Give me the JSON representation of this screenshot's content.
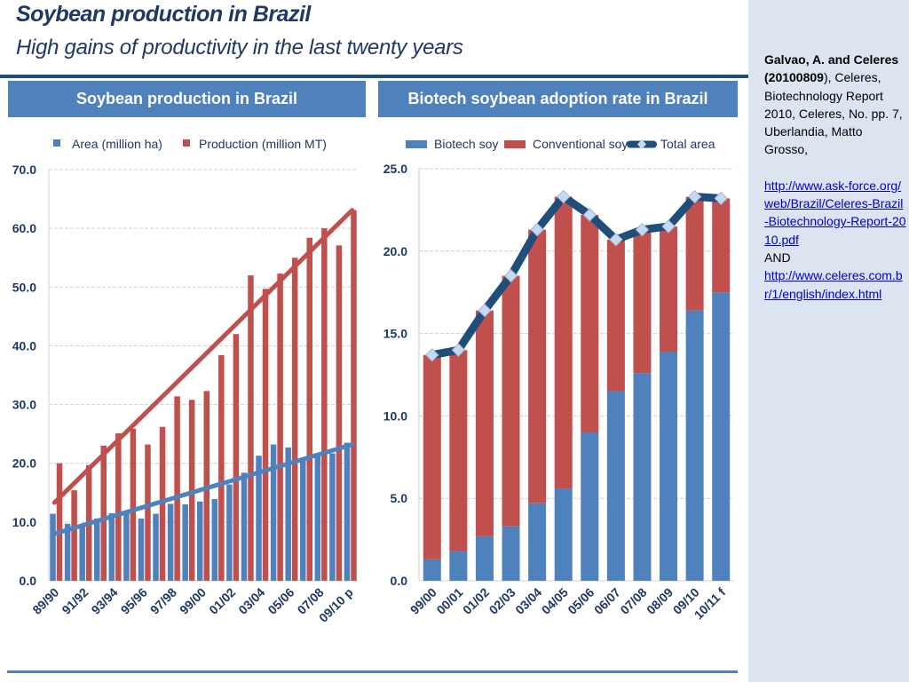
{
  "slide": {
    "title": "Soybean production in Brazil",
    "subtitle": "High gains of productivity in the last twenty years"
  },
  "colors": {
    "blue": "#4f81bd",
    "red": "#c0504d",
    "navy": "#1f4e79",
    "marker": "#c6d9f1",
    "text": "#1f3864"
  },
  "citation": {
    "author_bold": "Galvao, A. and Celeres (20100809",
    "author_tail": "),",
    "body": "Celeres, Biotechnology Report 2010, Celeres,  No. pp. 7,  Uberlandia, Matto Grosso,",
    "link1": "http://www.ask-force.org/web/Brazil/Celeres-Brazil-Biotechnology-Report-2010.pdf",
    "and": "AND",
    "link2": "http://www.celeres.com.br/1/english/index.html"
  },
  "chart_data": [
    {
      "type": "bar",
      "title": "Soybean production in Brazil",
      "xlabel": "",
      "ylabel": "",
      "ylim": [
        0,
        70
      ],
      "yticks": [
        "0.0",
        "10.0",
        "20.0",
        "30.0",
        "40.0",
        "50.0",
        "60.0",
        "70.0"
      ],
      "grid": true,
      "legend": "top",
      "categories": [
        "89/90",
        "90/91",
        "91/92",
        "92/93",
        "93/94",
        "94/95",
        "95/96",
        "96/97",
        "97/98",
        "98/99",
        "99/00",
        "00/01",
        "01/02",
        "02/03",
        "03/04",
        "04/05",
        "05/06",
        "06/07",
        "07/08",
        "08/09",
        "09/10 p"
      ],
      "category_labels_shown": [
        "89/90",
        "91/92",
        "93/94",
        "95/96",
        "97/98",
        "99/00",
        "01/02",
        "03/04",
        "05/06",
        "07/08",
        "09/10 p"
      ],
      "series": [
        {
          "name": "Area (million ha)",
          "color": "#4f81bd",
          "values": [
            11.4,
            9.7,
            9.7,
            10.6,
            11.5,
            11.7,
            10.6,
            11.4,
            13.1,
            13.0,
            13.5,
            13.9,
            16.4,
            18.4,
            21.3,
            23.2,
            22.7,
            20.7,
            21.3,
            21.7,
            23.5
          ]
        },
        {
          "name": "Production (million MT)",
          "color": "#c0504d",
          "values": [
            20.0,
            15.4,
            19.7,
            23.0,
            25.1,
            25.9,
            23.2,
            26.2,
            31.4,
            30.8,
            32.3,
            38.4,
            42.0,
            52.0,
            49.7,
            52.3,
            55.0,
            58.4,
            60.0,
            57.1,
            63.1
          ]
        }
      ],
      "trendlines": [
        {
          "series": "Area (million ha)",
          "start": 8.0,
          "end": 23.2
        },
        {
          "series": "Production (million MT)",
          "start": 13.3,
          "end": 63.1
        }
      ]
    },
    {
      "type": "bar",
      "stacked": true,
      "title": "Biotech soybean adoption rate in Brazil",
      "xlabel": "",
      "ylabel": "",
      "ylim": [
        0,
        25
      ],
      "yticks": [
        "0.0",
        "5.0",
        "10.0",
        "15.0",
        "20.0",
        "25.0"
      ],
      "grid": true,
      "legend": "top",
      "categories": [
        "99/00",
        "00/01",
        "01/02",
        "02/03",
        "03/04",
        "04/05",
        "05/06",
        "06/07",
        "07/08",
        "08/09",
        "09/10",
        "10/11 f"
      ],
      "series": [
        {
          "name": "Biotech soy",
          "color": "#4f81bd",
          "values": [
            1.3,
            1.8,
            2.7,
            3.3,
            4.7,
            5.6,
            9.0,
            11.5,
            12.6,
            13.9,
            16.4,
            17.5
          ]
        },
        {
          "name": "Conventional soy",
          "color": "#c0504d",
          "values": [
            12.4,
            12.2,
            13.7,
            15.2,
            16.6,
            17.7,
            13.2,
            9.2,
            8.7,
            7.6,
            6.9,
            5.7
          ]
        },
        {
          "name": "Total area",
          "color": "#1f4e79",
          "type": "line",
          "values": [
            13.7,
            14.0,
            16.4,
            18.5,
            21.3,
            23.3,
            22.2,
            20.7,
            21.3,
            21.5,
            23.3,
            23.2
          ]
        }
      ]
    }
  ]
}
